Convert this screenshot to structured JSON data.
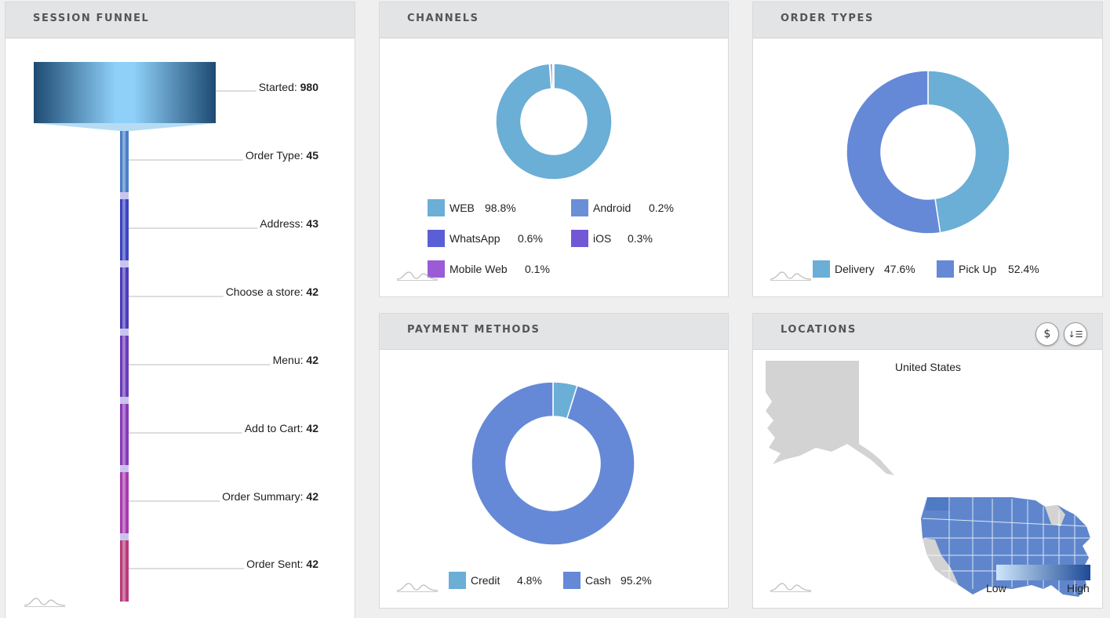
{
  "panels": {
    "funnel": {
      "title": "SESSION FUNNEL",
      "stages": [
        {
          "label": "Started:",
          "value": "980",
          "color": "#7cc4ee"
        },
        {
          "label": "Order Type:",
          "value": "45",
          "color": "#4a7fc9"
        },
        {
          "label": "Address:",
          "value": "43",
          "color": "#3b44c0"
        },
        {
          "label": "Choose a store:",
          "value": "42",
          "color": "#4a3cb8"
        },
        {
          "label": "Menu:",
          "value": "42",
          "color": "#6b3bb8"
        },
        {
          "label": "Add to Cart:",
          "value": "42",
          "color": "#8a3ab8"
        },
        {
          "label": "Order Summary:",
          "value": "42",
          "color": "#a83ab0"
        },
        {
          "label": "Order Sent:",
          "value": "42",
          "color": "#b83a7a"
        }
      ]
    },
    "channels": {
      "title": "CHANNELS",
      "chart_data": {
        "type": "pie",
        "categories": [
          "WEB",
          "Android",
          "WhatsApp",
          "iOS",
          "Mobile Web"
        ],
        "values": [
          98.8,
          0.2,
          0.6,
          0.3,
          0.1
        ],
        "labels": [
          "98.8%",
          "0.2%",
          "0.6%",
          "0.3%",
          "0.1%"
        ],
        "colors": [
          "#6baed6",
          "#6a8fd6",
          "#5b5fd6",
          "#7358d6",
          "#9b5bd6"
        ]
      }
    },
    "order_types": {
      "title": "ORDER TYPES",
      "chart_data": {
        "type": "pie",
        "categories": [
          "Delivery",
          "Pick Up"
        ],
        "values": [
          47.6,
          52.4
        ],
        "labels": [
          "47.6%",
          "52.4%"
        ],
        "colors": [
          "#6baed6",
          "#6589d6"
        ]
      }
    },
    "payment_methods": {
      "title": "PAYMENT METHODS",
      "chart_data": {
        "type": "pie",
        "categories": [
          "Credit",
          "Cash"
        ],
        "values": [
          4.8,
          95.2
        ],
        "labels": [
          "4.8%",
          "95.2%"
        ],
        "colors": [
          "#6baed6",
          "#6589d6"
        ]
      }
    },
    "locations": {
      "title": "LOCATIONS",
      "map_title": "United States",
      "legend_low": "Low",
      "legend_high": "High",
      "buttons": {
        "currency": "$",
        "sort": "↓☰"
      },
      "colors": {
        "low": "#cfe6fb",
        "high": "#1e4a96",
        "empty": "#d3d3d3",
        "filled": "#5f86cc"
      }
    }
  }
}
